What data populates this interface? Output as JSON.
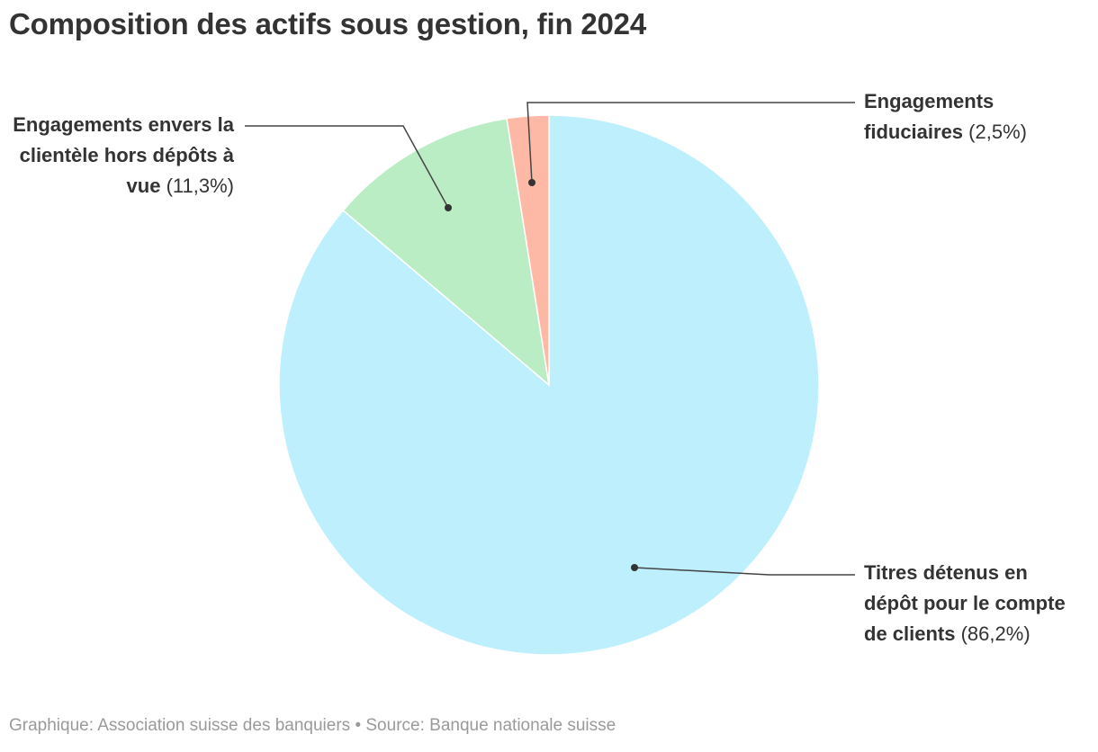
{
  "chart_data": {
    "type": "pie",
    "title": "Composition des actifs sous gestion, fin 2024",
    "slices": [
      {
        "label": "Titres détenus en dépôt pour le compte de clients",
        "value": 86.2,
        "display": "(86,2%)",
        "color": "#bdeffd"
      },
      {
        "label": "Engagements envers la clientèle hors dépôts à vue",
        "value": 11.3,
        "display": "(11,3%)",
        "color": "#bbedc5"
      },
      {
        "label": "Engagements fiduciaires",
        "value": 2.5,
        "display": "(2,5%)",
        "color": "#fdb9a6"
      }
    ],
    "legend": "callout-labels"
  },
  "labels": {
    "titres": {
      "name": "Titres détenus en dépôt pour le compte de clients",
      "pct": "(86,2%)"
    },
    "engagements": {
      "name": "Engagements envers la clientèle hors dépôts à vue",
      "pct": "(11,3%)"
    },
    "fiduciaires": {
      "name": "Engagements fiduciaires",
      "pct": "(2,5%)"
    }
  },
  "footer": "Graphique: Association suisse des banquiers • Source: Banque nationale suisse"
}
